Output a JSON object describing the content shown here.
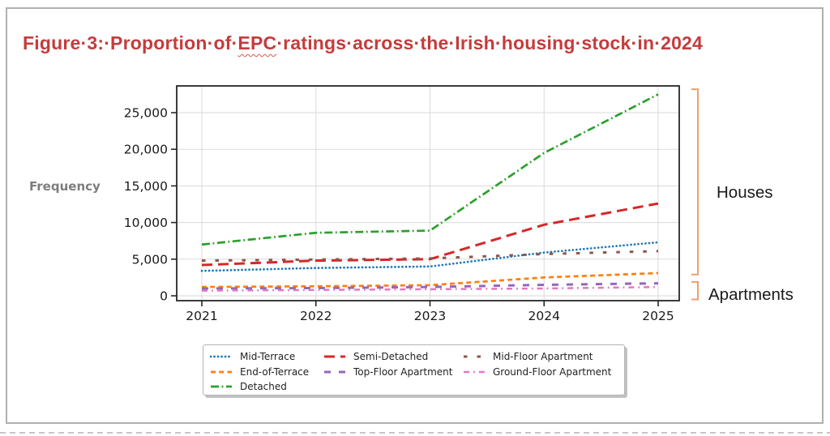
{
  "figure": {
    "title": {
      "pre": "Figure·3:·Proportion·of·",
      "highlight": "EPC",
      "post": "·ratings·across·the·Irish·housing·stock·in·2024",
      "color": "#c43c3c"
    },
    "ylabel": "Frequency",
    "annotation_labels": {
      "houses": "Houses",
      "apartments": "Apartments"
    },
    "bracket_color": "#ef9e6d"
  },
  "chart_data": {
    "type": "line",
    "title": "Figure 3: Proportion of EPC ratings across the Irish housing stock in 2024",
    "xlabel": "",
    "ylabel": "Frequency",
    "x": [
      2021,
      2022,
      2023,
      2024,
      2025
    ],
    "x_tick_labels": [
      "2021",
      "2022",
      "2023",
      "2024",
      "2025"
    ],
    "y_ticks": [
      0,
      5000,
      10000,
      15000,
      20000,
      25000
    ],
    "y_tick_labels": [
      "0",
      "5,000",
      "10,000",
      "15,000",
      "20,000",
      "25,000"
    ],
    "ylim": [
      0,
      28900
    ],
    "grid": true,
    "legend_position": "below-chart",
    "series": [
      {
        "name": "Mid-Terrace",
        "color": "#1f77b4",
        "line_style": "dotted",
        "values": [
          3400,
          3800,
          4000,
          5900,
          7300
        ]
      },
      {
        "name": "End-of-Terrace",
        "color": "#ff7f0e",
        "line_style": "dashed",
        "values": [
          1200,
          1300,
          1450,
          2500,
          3100
        ]
      },
      {
        "name": "Detached",
        "color": "#2ca02c",
        "line_style": "dashdot",
        "values": [
          7000,
          8600,
          8900,
          19500,
          27500
        ]
      },
      {
        "name": "Semi-Detached",
        "color": "#d62728",
        "line_style": "longdash",
        "values": [
          4200,
          4800,
          5000,
          9700,
          12600
        ]
      },
      {
        "name": "Top-Floor Apartment",
        "color": "#9467bd",
        "line_style": "sparse-dash",
        "values": [
          1000,
          1050,
          1200,
          1500,
          1700
        ]
      },
      {
        "name": "Mid-Floor Apartment",
        "color": "#8c564b",
        "line_style": "sparse-shortdash",
        "values": [
          4800,
          4950,
          5100,
          5700,
          6100
        ]
      },
      {
        "name": "Ground-Floor Apartment",
        "color": "#e377c2",
        "line_style": "dashdot-sparse",
        "values": [
          700,
          800,
          900,
          1000,
          1200
        ]
      }
    ],
    "annotations": [
      {
        "label": "Houses",
        "value_from": 28200,
        "value_to": 2900
      },
      {
        "label": "Apartments",
        "value_from": 1900,
        "value_to": -500
      }
    ]
  }
}
